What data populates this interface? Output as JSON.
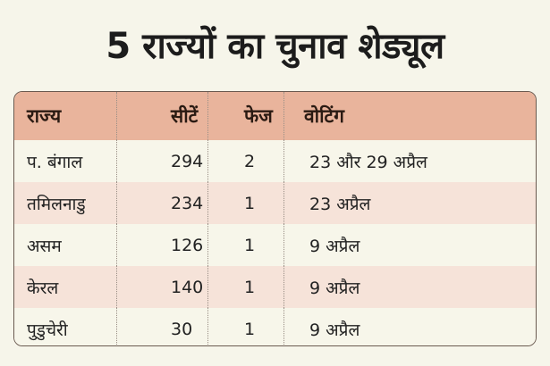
{
  "title": "5 राज्यों का चुनाव शेड्यूल",
  "table": {
    "headers": [
      "राज्य",
      "सीटें",
      "फेज",
      "वोटिंग"
    ],
    "rows": [
      {
        "state": "प. बंगाल",
        "seats": "294",
        "phases": "2",
        "voting": "23 और 29 अप्रैल"
      },
      {
        "state": "तमिलनाडु",
        "seats": "234",
        "phases": "1",
        "voting": "23 अप्रैल"
      },
      {
        "state": "असम",
        "seats": "126",
        "phases": "1",
        "voting": "9 अप्रैल"
      },
      {
        "state": "केरल",
        "seats": "140",
        "phases": "1",
        "voting": "9 अप्रैल"
      },
      {
        "state": "पुडुचेरी",
        "seats": "30",
        "phases": "1",
        "voting": "9 अप्रैल"
      }
    ]
  },
  "colors": {
    "background": "#f6f5ea",
    "header_bg": "#e9b49c",
    "alt_row_bg": "#f6e3d9",
    "plain_row_bg": "#f7f6ea"
  }
}
